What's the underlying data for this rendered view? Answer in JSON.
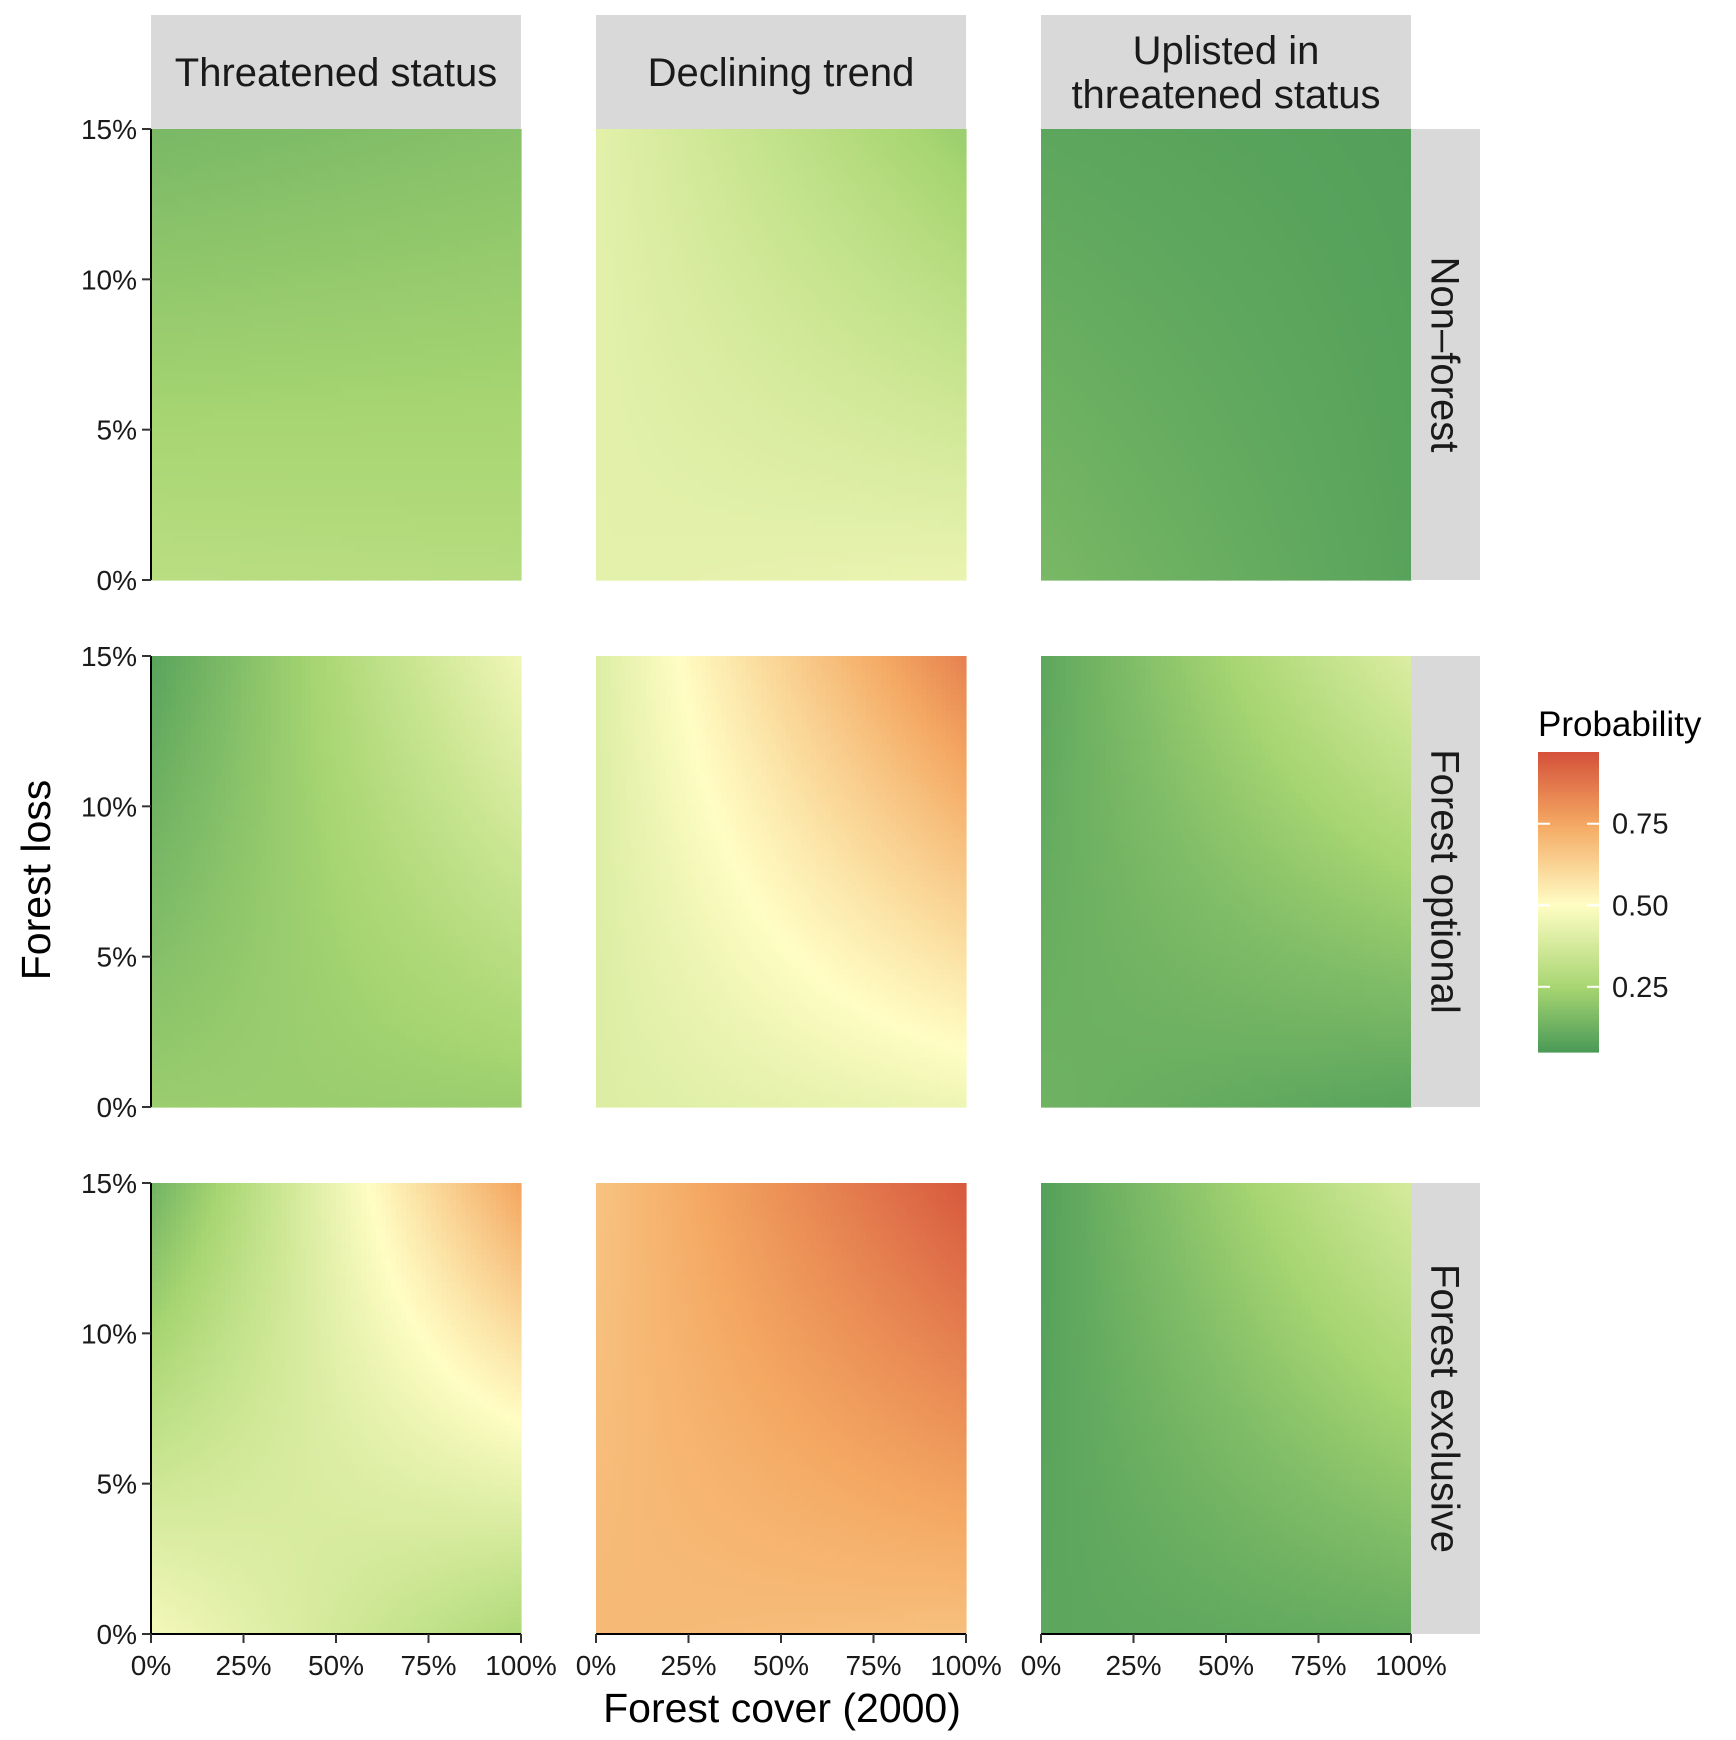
{
  "chart_data": {
    "type": "heatmap",
    "xlabel": "Forest cover (2000)",
    "ylabel": "Forest loss",
    "x_ticks": [
      "0%",
      "25%",
      "50%",
      "75%",
      "100%"
    ],
    "x_tick_values": [
      0,
      25,
      50,
      75,
      100
    ],
    "y_ticks": [
      "0%",
      "5%",
      "10%",
      "15%"
    ],
    "y_tick_values": [
      0,
      5,
      10,
      15
    ],
    "xlim": [
      0,
      100
    ],
    "ylim": [
      0,
      15
    ],
    "columns": [
      "Threatened status",
      "Declining trend",
      "Uplisted in threatened status"
    ],
    "rows": [
      "Non–forest",
      "Forest optional",
      "Forest exclusive"
    ],
    "legend": {
      "title": "Probability",
      "ticks": [
        "0.25",
        "0.50",
        "0.75"
      ],
      "tick_values": [
        0.25,
        0.5,
        0.75
      ],
      "range": [
        0.05,
        0.97
      ],
      "position": "right"
    },
    "colorscale": [
      {
        "p": 0.05,
        "color": "#4a9a58"
      },
      {
        "p": 0.25,
        "color": "#a8d672"
      },
      {
        "p": 0.5,
        "color": "#fffdc4"
      },
      {
        "p": 0.75,
        "color": "#f4a862"
      },
      {
        "p": 0.97,
        "color": "#d4503a"
      }
    ],
    "grid": false,
    "panels": [
      {
        "row": 0,
        "col": 0,
        "corners": {
          "bl": 0.3,
          "br": 0.29,
          "tl": 0.15,
          "tr": 0.18
        }
      },
      {
        "row": 0,
        "col": 1,
        "corners": {
          "bl": 0.42,
          "br": 0.44,
          "tl": 0.42,
          "tr": 0.22
        }
      },
      {
        "row": 0,
        "col": 2,
        "corners": {
          "bl": 0.15,
          "br": 0.08,
          "tl": 0.09,
          "tr": 0.07
        }
      },
      {
        "row": 1,
        "col": 0,
        "corners": {
          "bl": 0.22,
          "br": 0.22,
          "tl": 0.08,
          "tr": 0.46
        }
      },
      {
        "row": 1,
        "col": 1,
        "corners": {
          "bl": 0.4,
          "br": 0.45,
          "tl": 0.4,
          "tr": 0.85
        }
      },
      {
        "row": 1,
        "col": 2,
        "corners": {
          "bl": 0.13,
          "br": 0.08,
          "tl": 0.09,
          "tr": 0.4
        }
      },
      {
        "row": 2,
        "col": 0,
        "corners": {
          "bl": 0.47,
          "br": 0.27,
          "tl": 0.13,
          "tr": 0.76
        }
      },
      {
        "row": 2,
        "col": 1,
        "corners": {
          "bl": 0.7,
          "br": 0.68,
          "tl": 0.67,
          "tr": 0.95
        }
      },
      {
        "row": 2,
        "col": 2,
        "corners": {
          "bl": 0.09,
          "br": 0.11,
          "tl": 0.07,
          "tr": 0.38
        }
      }
    ]
  }
}
